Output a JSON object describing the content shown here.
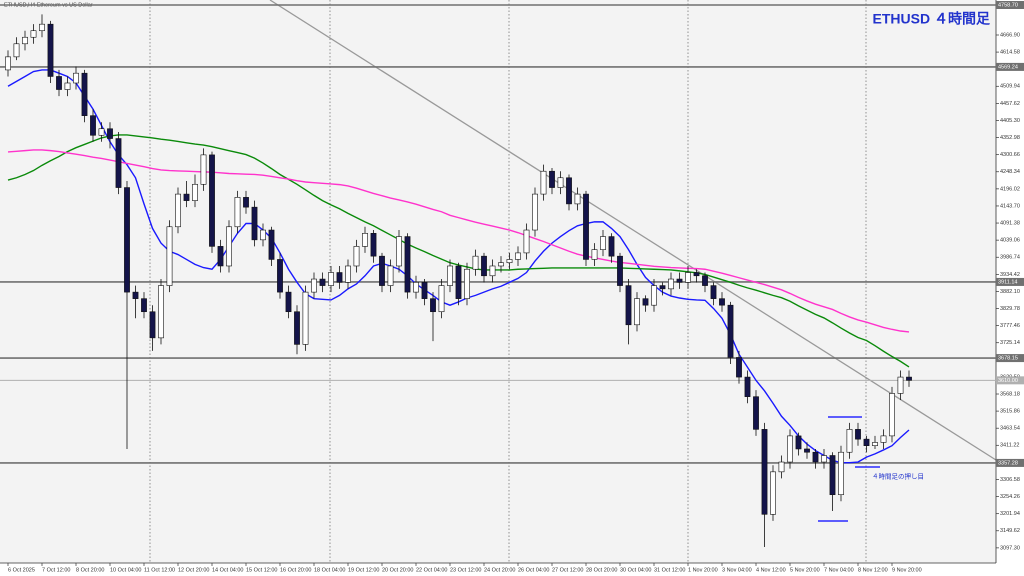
{
  "chart_data": {
    "type": "candlestick",
    "title": "ETHUSD ４時間足",
    "subtitle": "ETHUSD,H4  Ethereum vs US Dollar",
    "annotation": "４時間足の押し目",
    "up_color": "#ffffff",
    "down_color": "#14144a",
    "categories": [
      "6 Oct 2025",
      null,
      null,
      null,
      "7 Oct 12:00",
      null,
      null,
      null,
      "8 Oct 20:00",
      null,
      null,
      null,
      "10 Oct 04:00",
      null,
      null,
      null,
      "11 Oct 12:00",
      null,
      null,
      null,
      "12 Oct 20:00",
      null,
      null,
      null,
      "14 Oct 04:00",
      null,
      null,
      null,
      "15 Oct 12:00",
      null,
      null,
      null,
      "16 Oct 20:00",
      null,
      null,
      null,
      "18 Oct 04:00",
      null,
      null,
      null,
      "19 Oct 12:00",
      null,
      null,
      null,
      "20 Oct 20:00",
      null,
      null,
      null,
      "22 Oct 04:00",
      null,
      null,
      null,
      "23 Oct 12:00",
      null,
      null,
      null,
      "24 Oct 20:00",
      null,
      null,
      null,
      "26 Oct 04:00",
      null,
      null,
      null,
      "27 Oct 12:00",
      null,
      null,
      null,
      "28 Oct 20:00",
      null,
      null,
      null,
      "30 Oct 04:00",
      null,
      null,
      null,
      "31 Oct 12:00",
      null,
      null,
      null,
      "1 Nov 20:00",
      null,
      null,
      null,
      "3 Nov 04:00",
      null,
      null,
      null,
      "4 Nov 12:00",
      null,
      null,
      null,
      "5 Nov 20:00",
      null,
      null,
      null,
      "7 Nov 04:00",
      null,
      null,
      null,
      "8 Nov 12:00",
      null,
      null,
      null,
      "9 Nov 20:00",
      null,
      null
    ],
    "ohlc": [
      [
        4560,
        4620,
        4540,
        4600
      ],
      [
        4600,
        4660,
        4590,
        4640
      ],
      [
        4640,
        4680,
        4620,
        4660
      ],
      [
        4660,
        4700,
        4640,
        4680
      ],
      [
        4680,
        4730,
        4660,
        4700
      ],
      [
        4700,
        4710,
        4520,
        4540
      ],
      [
        4540,
        4560,
        4480,
        4500
      ],
      [
        4500,
        4540,
        4480,
        4520
      ],
      [
        4520,
        4570,
        4500,
        4550
      ],
      [
        4550,
        4560,
        4400,
        4420
      ],
      [
        4420,
        4440,
        4340,
        4360
      ],
      [
        4360,
        4400,
        4340,
        4380
      ],
      [
        4380,
        4400,
        4320,
        4350
      ],
      [
        4350,
        4370,
        4180,
        4200
      ],
      [
        4200,
        4220,
        3400,
        3880
      ],
      [
        3880,
        3900,
        3800,
        3860
      ],
      [
        3860,
        3880,
        3800,
        3820
      ],
      [
        3820,
        3840,
        3700,
        3740
      ],
      [
        3740,
        3920,
        3720,
        3900
      ],
      [
        3900,
        4100,
        3880,
        4080
      ],
      [
        4080,
        4200,
        4060,
        4180
      ],
      [
        4180,
        4220,
        4140,
        4160
      ],
      [
        4160,
        4240,
        4140,
        4210
      ],
      [
        4210,
        4320,
        4190,
        4300
      ],
      [
        4300,
        4310,
        4000,
        4020
      ],
      [
        4020,
        4040,
        3940,
        3960
      ],
      [
        3960,
        4100,
        3940,
        4080
      ],
      [
        4080,
        4190,
        4060,
        4170
      ],
      [
        4170,
        4190,
        4120,
        4140
      ],
      [
        4140,
        4160,
        4020,
        4040
      ],
      [
        4040,
        4090,
        4020,
        4070
      ],
      [
        4070,
        4080,
        3960,
        3980
      ],
      [
        3980,
        4000,
        3860,
        3880
      ],
      [
        3880,
        3900,
        3800,
        3820
      ],
      [
        3820,
        3840,
        3690,
        3720
      ],
      [
        3720,
        3900,
        3700,
        3880
      ],
      [
        3880,
        3940,
        3860,
        3920
      ],
      [
        3920,
        3940,
        3880,
        3900
      ],
      [
        3900,
        3960,
        3880,
        3940
      ],
      [
        3940,
        3960,
        3890,
        3910
      ],
      [
        3910,
        3980,
        3890,
        3960
      ],
      [
        3960,
        4040,
        3940,
        4020
      ],
      [
        4020,
        4080,
        4000,
        4060
      ],
      [
        4060,
        4070,
        3970,
        3990
      ],
      [
        3990,
        4000,
        3880,
        3900
      ],
      [
        3900,
        3980,
        3880,
        3960
      ],
      [
        3960,
        4070,
        3940,
        4050
      ],
      [
        4050,
        4060,
        3860,
        3880
      ],
      [
        3880,
        3930,
        3860,
        3910
      ],
      [
        3910,
        3920,
        3840,
        3860
      ],
      [
        3860,
        3880,
        3730,
        3820
      ],
      [
        3820,
        3920,
        3800,
        3900
      ],
      [
        3900,
        3980,
        3880,
        3960
      ],
      [
        3960,
        3970,
        3840,
        3860
      ],
      [
        3860,
        3970,
        3840,
        3950
      ],
      [
        3950,
        4010,
        3930,
        3990
      ],
      [
        3990,
        4000,
        3910,
        3930
      ],
      [
        3930,
        3980,
        3910,
        3960
      ],
      [
        3960,
        3990,
        3940,
        3970
      ],
      [
        3970,
        4000,
        3950,
        3980
      ],
      [
        3980,
        4020,
        3960,
        4000
      ],
      [
        4000,
        4090,
        3980,
        4070
      ],
      [
        4070,
        4200,
        4050,
        4180
      ],
      [
        4180,
        4270,
        4160,
        4250
      ],
      [
        4250,
        4260,
        4180,
        4200
      ],
      [
        4200,
        4250,
        4180,
        4230
      ],
      [
        4230,
        4240,
        4130,
        4150
      ],
      [
        4150,
        4200,
        4130,
        4180
      ],
      [
        4180,
        4190,
        3960,
        3980
      ],
      [
        3980,
        4030,
        3960,
        4010
      ],
      [
        4010,
        4070,
        3990,
        4050
      ],
      [
        4050,
        4060,
        3970,
        3990
      ],
      [
        3990,
        4000,
        3880,
        3900
      ],
      [
        3900,
        3920,
        3720,
        3780
      ],
      [
        3780,
        3880,
        3760,
        3860
      ],
      [
        3860,
        3870,
        3820,
        3840
      ],
      [
        3840,
        3920,
        3820,
        3900
      ],
      [
        3900,
        3910,
        3870,
        3890
      ],
      [
        3890,
        3940,
        3870,
        3920
      ],
      [
        3920,
        3940,
        3890,
        3910
      ],
      [
        3910,
        3960,
        3890,
        3940
      ],
      [
        3940,
        3950,
        3910,
        3930
      ],
      [
        3930,
        3940,
        3880,
        3900
      ],
      [
        3900,
        3910,
        3840,
        3860
      ],
      [
        3860,
        3880,
        3820,
        3840
      ],
      [
        3840,
        3850,
        3660,
        3680
      ],
      [
        3680,
        3700,
        3600,
        3620
      ],
      [
        3620,
        3640,
        3540,
        3560
      ],
      [
        3560,
        3580,
        3440,
        3460
      ],
      [
        3460,
        3480,
        3100,
        3200
      ],
      [
        3200,
        3350,
        3180,
        3330
      ],
      [
        3330,
        3380,
        3310,
        3360
      ],
      [
        3360,
        3460,
        3340,
        3440
      ],
      [
        3440,
        3450,
        3380,
        3400
      ],
      [
        3400,
        3420,
        3370,
        3390
      ],
      [
        3390,
        3400,
        3340,
        3360
      ],
      [
        3360,
        3400,
        3340,
        3380
      ],
      [
        3380,
        3390,
        3210,
        3260
      ],
      [
        3260,
        3410,
        3240,
        3390
      ],
      [
        3390,
        3480,
        3370,
        3460
      ],
      [
        3460,
        3480,
        3410,
        3430
      ],
      [
        3430,
        3440,
        3390,
        3410
      ],
      [
        3410,
        3440,
        3400,
        3420
      ],
      [
        3420,
        3460,
        3400,
        3440
      ],
      [
        3440,
        3590,
        3420,
        3570
      ],
      [
        3570,
        3640,
        3550,
        3620
      ],
      [
        3620,
        3640,
        3590,
        3610
      ]
    ],
    "series": [
      {
        "color": "#1a1aff",
        "values": [
          4510,
          4525,
          4540,
          4555,
          4560,
          4560,
          4550,
          4540,
          4520,
          4480,
          4440,
          4390,
          4340,
          4300,
          4270,
          4230,
          4150,
          4075,
          4030,
          4005,
          3995,
          3980,
          3965,
          3955,
          3950,
          3980,
          4020,
          4060,
          4090,
          4090,
          4070,
          4045,
          4000,
          3950,
          3910,
          3875,
          3860,
          3858,
          3856,
          3870,
          3890,
          3905,
          3930,
          3960,
          3968,
          3960,
          3950,
          3930,
          3905,
          3887,
          3870,
          3850,
          3840,
          3850,
          3862,
          3870,
          3880,
          3890,
          3898,
          3910,
          3922,
          3940,
          3975,
          4005,
          4030,
          4050,
          4068,
          4083,
          4090,
          4095,
          4095,
          4075,
          4050,
          4010,
          3965,
          3925,
          3900,
          3880,
          3868,
          3862,
          3858,
          3856,
          3855,
          3830,
          3800,
          3750,
          3690,
          3650,
          3610,
          3578,
          3540,
          3500,
          3472,
          3440,
          3415,
          3395,
          3380,
          3365,
          3358,
          3358,
          3360,
          3375,
          3385,
          3397,
          3410,
          3435,
          3458
        ]
      },
      {
        "color": "#0a8a0a",
        "values": [
          4223,
          4230,
          4240,
          4252,
          4268,
          4282,
          4295,
          4310,
          4322,
          4332,
          4342,
          4352,
          4358,
          4361,
          4361,
          4358,
          4355,
          4352,
          4348,
          4345,
          4341,
          4337,
          4333,
          4330,
          4325,
          4319,
          4313,
          4307,
          4301,
          4290,
          4275,
          4258,
          4240,
          4225,
          4210,
          4193,
          4176,
          4160,
          4147,
          4135,
          4121,
          4108,
          4095,
          4083,
          4069,
          4055,
          4041,
          4027,
          4015,
          4004,
          3992,
          3981,
          3970,
          3963,
          3957,
          3951,
          3948,
          3948,
          3948,
          3948,
          3950,
          3951,
          3952,
          3953,
          3954,
          3954,
          3954,
          3954,
          3954,
          3954,
          3954,
          3954,
          3954,
          3953,
          3952,
          3951,
          3950,
          3949,
          3948,
          3945,
          3942,
          3939,
          3934,
          3926,
          3918,
          3910,
          3901,
          3893,
          3886,
          3878,
          3870,
          3863,
          3852,
          3838,
          3825,
          3812,
          3801,
          3786,
          3770,
          3755,
          3741,
          3732,
          3716,
          3699,
          3683,
          3668,
          3651
        ]
      },
      {
        "color": "#ff33cc",
        "values": [
          4309,
          4311,
          4313,
          4315,
          4315,
          4313,
          4310,
          4306,
          4302,
          4298,
          4293,
          4289,
          4284,
          4279,
          4274,
          4269,
          4264,
          4258,
          4254,
          4252,
          4251,
          4250,
          4249,
          4248,
          4247,
          4245,
          4243,
          4242,
          4241,
          4240,
          4238,
          4234,
          4230,
          4226,
          4221,
          4217,
          4215,
          4213,
          4211,
          4209,
          4205,
          4198,
          4190,
          4182,
          4175,
          4168,
          4162,
          4156,
          4149,
          4141,
          4133,
          4126,
          4115,
          4108,
          4101,
          4094,
          4088,
          4082,
          4076,
          4070,
          4062,
          4053,
          4044,
          4035,
          4025,
          4015,
          4005,
          3996,
          3990,
          3985,
          3980,
          3975,
          3971,
          3968,
          3965,
          3962,
          3959,
          3957,
          3955,
          3954,
          3953,
          3952,
          3950,
          3944,
          3938,
          3931,
          3924,
          3917,
          3910,
          3903,
          3895,
          3887,
          3876,
          3864,
          3853,
          3843,
          3835,
          3827,
          3815,
          3804,
          3795,
          3788,
          3780,
          3772,
          3766,
          3761,
          3758
        ]
      }
    ],
    "ylim": [
      3051,
      4774
    ],
    "yticks": [
      {
        "value": 4666.9,
        "label": "4666.90"
      },
      4614.58,
      4562.26,
      4509.94,
      4457.62,
      {
        "value": 4405.3,
        "label": "4405.30"
      },
      4352.98,
      4300.66,
      4248.34,
      4196.02,
      {
        "value": 4143.7,
        "label": "4143.70"
      },
      4091.38,
      4039.06,
      3986.74,
      3934.42,
      {
        "value": 3882.1,
        "label": "3882.10"
      },
      3829.78,
      3777.46,
      3725.14,
      3672.82,
      {
        "value": 3620.5,
        "label": "3620.50"
      },
      3568.18,
      3515.86,
      3463.54,
      3411.22,
      {
        "value": 3358.9,
        "label": "3358.90"
      },
      3306.58,
      3254.26,
      3201.94,
      3149.62,
      {
        "value": 3097.3,
        "label": "3097.30"
      }
    ],
    "levels": [
      {
        "value": 4758.7,
        "label": "4758.70"
      },
      {
        "value": 4569.24,
        "label": "4569.24"
      },
      {
        "value": 3911.14,
        "label": "3911.14"
      },
      {
        "value": 3678.15,
        "label": "3678.15"
      },
      {
        "value": 3357.28,
        "label": "3357.28"
      }
    ],
    "current_price": {
      "value": 3610,
      "label": "3610.00"
    }
  }
}
